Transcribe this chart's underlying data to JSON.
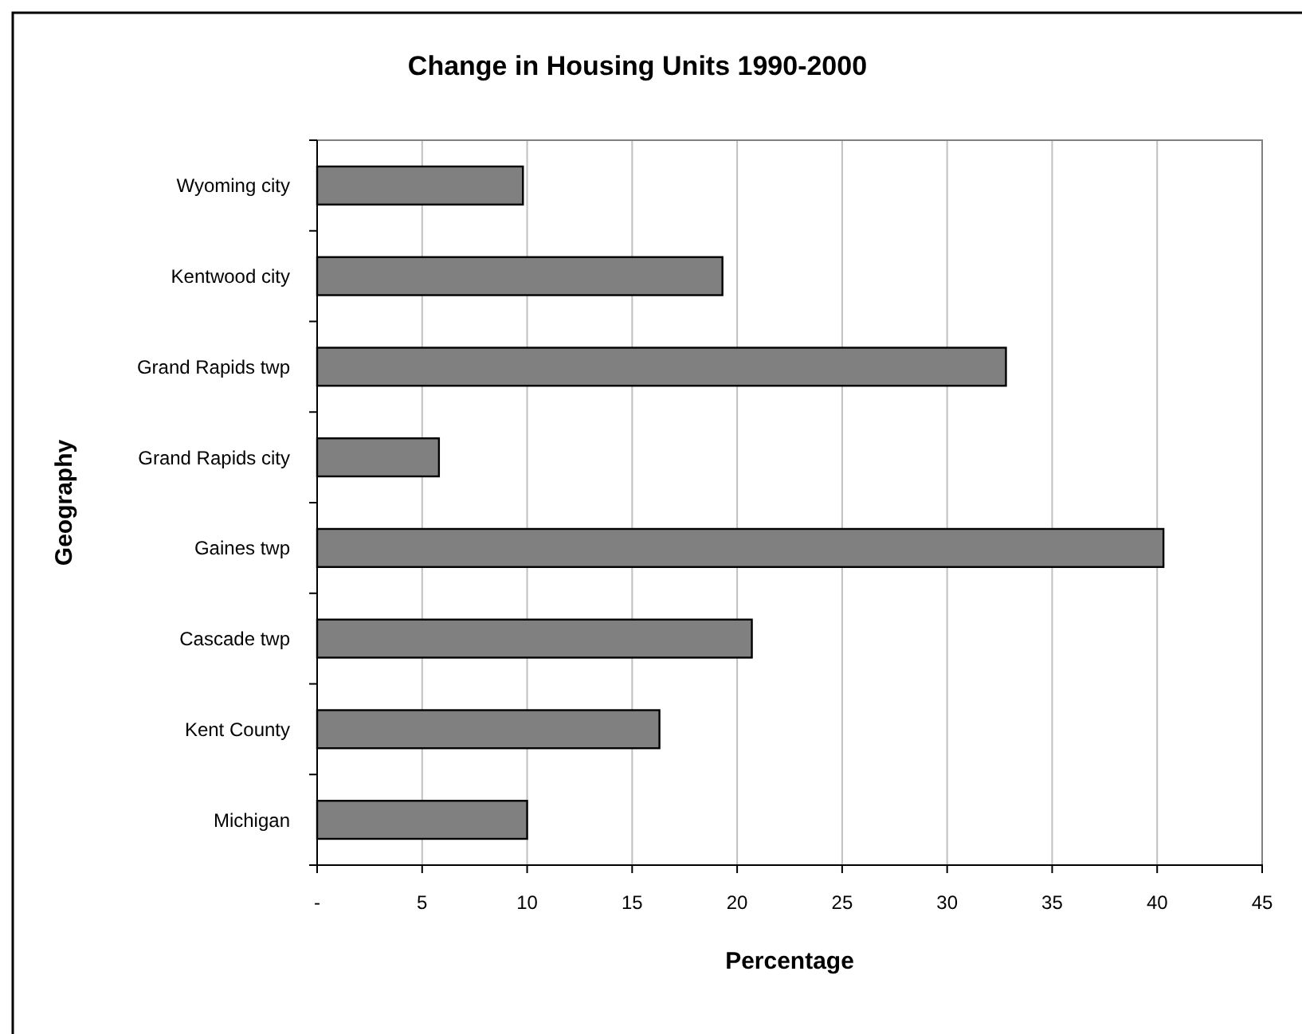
{
  "chart_data": {
    "type": "bar",
    "orientation": "horizontal",
    "title": "Change in Housing Units 1990-2000",
    "xlabel": "Percentage",
    "ylabel": "Geography",
    "categories": [
      "Wyoming city",
      "Kentwood city",
      "Grand Rapids twp",
      "Grand Rapids city",
      "Gaines twp",
      "Cascade twp",
      "Kent County",
      "Michigan"
    ],
    "values": [
      9.8,
      19.3,
      32.8,
      5.8,
      40.3,
      20.7,
      16.3,
      10.0
    ],
    "color": "#808080",
    "xlim": [
      0,
      45
    ],
    "xticks": [
      {
        "value": 0,
        "label": "-"
      },
      5,
      10,
      15,
      20,
      25,
      30,
      35,
      40,
      45
    ],
    "grid": "x"
  }
}
